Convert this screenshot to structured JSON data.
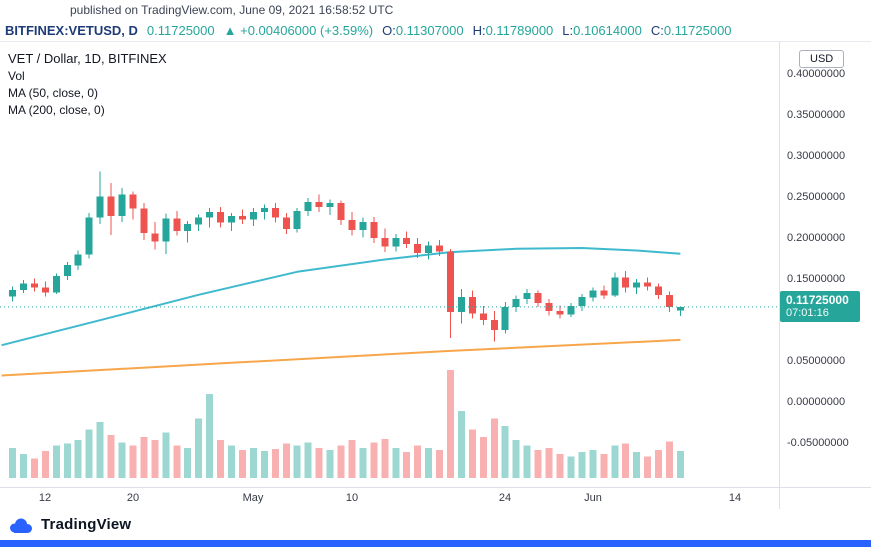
{
  "meta": {
    "published": "published on TradingView.com, June 09, 2021 16:58:52 UTC"
  },
  "symbol_bar": {
    "symbol": "BITFINEX:VETUSD, D",
    "last": "0.11725000",
    "change": "▲ +0.00406000 (+3.59%)",
    "ohlc": [
      {
        "label": "O:",
        "value": "0.11307000"
      },
      {
        "label": "H:",
        "value": "0.11789000"
      },
      {
        "label": "L:",
        "value": "0.10614000"
      },
      {
        "label": "C:",
        "value": "0.11725000"
      }
    ]
  },
  "legend": {
    "title": "VET / Dollar, 1D, BITFINEX",
    "vol": "Vol",
    "ma50": "MA (50, close, 0)",
    "ma200": "MA (200, close, 0)"
  },
  "price_scale": {
    "usd_label": "USD",
    "labels": [
      "0.40000000",
      "0.35000000",
      "0.30000000",
      "0.25000000",
      "0.20000000",
      "0.15000000",
      "0.05000000",
      "0.00000000",
      "-0.05000000"
    ],
    "badge": {
      "price": "0.11725000",
      "countdown": "07:01:16"
    }
  },
  "footer": {
    "brand": "TradingView"
  },
  "chart_data": {
    "type": "candlestick",
    "title": "VET / Dollar, 1D, BITFINEX",
    "symbol": "BITFINEX:VETUSD",
    "interval": "1D",
    "quote": "USD",
    "first_candle_date": "2021-04-09",
    "last_candle_date": "2021-06-09",
    "last_price": 0.11725,
    "ylim": [
      -0.1024,
      0.4402
    ],
    "y_ticks": [
      0.4,
      0.35,
      0.3,
      0.25,
      0.2,
      0.15,
      0.1,
      0.05,
      0.0,
      -0.05
    ],
    "x_ticks": [
      {
        "label": "12",
        "i": 3
      },
      {
        "label": "20",
        "i": 11
      },
      {
        "label": "May",
        "i": 22
      },
      {
        "label": "10",
        "i": 31
      },
      {
        "label": "24",
        "i": 45
      },
      {
        "label": "Jun",
        "i": 53
      },
      {
        "label": "14",
        "i": 66
      }
    ],
    "candles_format": [
      "open",
      "high",
      "low",
      "close",
      "relative_volume"
    ],
    "candles": [
      [
        0.13,
        0.142,
        0.124,
        0.138,
        0.28
      ],
      [
        0.138,
        0.15,
        0.134,
        0.146,
        0.22
      ],
      [
        0.146,
        0.152,
        0.136,
        0.141,
        0.18
      ],
      [
        0.141,
        0.148,
        0.13,
        0.135,
        0.25
      ],
      [
        0.135,
        0.158,
        0.133,
        0.155,
        0.3
      ],
      [
        0.155,
        0.172,
        0.15,
        0.168,
        0.32
      ],
      [
        0.168,
        0.186,
        0.162,
        0.181,
        0.35
      ],
      [
        0.181,
        0.232,
        0.176,
        0.226,
        0.45
      ],
      [
        0.226,
        0.282,
        0.218,
        0.252,
        0.52
      ],
      [
        0.252,
        0.268,
        0.205,
        0.228,
        0.4
      ],
      [
        0.228,
        0.262,
        0.221,
        0.254,
        0.33
      ],
      [
        0.254,
        0.258,
        0.224,
        0.237,
        0.3
      ],
      [
        0.237,
        0.244,
        0.199,
        0.207,
        0.38
      ],
      [
        0.207,
        0.221,
        0.187,
        0.197,
        0.35
      ],
      [
        0.197,
        0.231,
        0.182,
        0.225,
        0.42
      ],
      [
        0.225,
        0.234,
        0.204,
        0.21,
        0.3
      ],
      [
        0.21,
        0.222,
        0.196,
        0.218,
        0.28
      ],
      [
        0.218,
        0.23,
        0.21,
        0.226,
        0.55
      ],
      [
        0.226,
        0.238,
        0.214,
        0.233,
        0.78
      ],
      [
        0.233,
        0.239,
        0.214,
        0.22,
        0.35
      ],
      [
        0.22,
        0.232,
        0.21,
        0.228,
        0.3
      ],
      [
        0.228,
        0.236,
        0.218,
        0.224,
        0.26
      ],
      [
        0.224,
        0.238,
        0.216,
        0.233,
        0.28
      ],
      [
        0.233,
        0.242,
        0.224,
        0.238,
        0.25
      ],
      [
        0.238,
        0.244,
        0.22,
        0.226,
        0.27
      ],
      [
        0.226,
        0.232,
        0.206,
        0.212,
        0.32
      ],
      [
        0.212,
        0.238,
        0.208,
        0.234,
        0.3
      ],
      [
        0.234,
        0.25,
        0.228,
        0.245,
        0.33
      ],
      [
        0.245,
        0.254,
        0.233,
        0.239,
        0.28
      ],
      [
        0.239,
        0.248,
        0.229,
        0.244,
        0.26
      ],
      [
        0.244,
        0.247,
        0.217,
        0.223,
        0.3
      ],
      [
        0.223,
        0.233,
        0.204,
        0.211,
        0.35
      ],
      [
        0.211,
        0.226,
        0.202,
        0.221,
        0.28
      ],
      [
        0.221,
        0.227,
        0.195,
        0.201,
        0.33
      ],
      [
        0.201,
        0.213,
        0.184,
        0.191,
        0.36
      ],
      [
        0.191,
        0.206,
        0.185,
        0.201,
        0.28
      ],
      [
        0.201,
        0.209,
        0.189,
        0.194,
        0.24
      ],
      [
        0.194,
        0.201,
        0.177,
        0.183,
        0.3
      ],
      [
        0.183,
        0.197,
        0.175,
        0.192,
        0.28
      ],
      [
        0.192,
        0.199,
        0.179,
        0.185,
        0.26
      ],
      [
        0.185,
        0.188,
        0.079,
        0.111,
        1.0
      ],
      [
        0.111,
        0.139,
        0.097,
        0.129,
        0.62
      ],
      [
        0.129,
        0.137,
        0.103,
        0.109,
        0.45
      ],
      [
        0.109,
        0.118,
        0.095,
        0.101,
        0.38
      ],
      [
        0.101,
        0.112,
        0.075,
        0.089,
        0.55
      ],
      [
        0.089,
        0.123,
        0.085,
        0.117,
        0.48
      ],
      [
        0.117,
        0.131,
        0.111,
        0.127,
        0.35
      ],
      [
        0.127,
        0.139,
        0.121,
        0.134,
        0.3
      ],
      [
        0.134,
        0.137,
        0.117,
        0.122,
        0.26
      ],
      [
        0.122,
        0.127,
        0.107,
        0.112,
        0.28
      ],
      [
        0.112,
        0.119,
        0.103,
        0.108,
        0.22
      ],
      [
        0.108,
        0.122,
        0.105,
        0.118,
        0.2
      ],
      [
        0.118,
        0.133,
        0.112,
        0.129,
        0.24
      ],
      [
        0.129,
        0.141,
        0.124,
        0.137,
        0.26
      ],
      [
        0.137,
        0.143,
        0.127,
        0.131,
        0.22
      ],
      [
        0.131,
        0.159,
        0.129,
        0.153,
        0.3
      ],
      [
        0.153,
        0.161,
        0.135,
        0.141,
        0.32
      ],
      [
        0.141,
        0.151,
        0.133,
        0.147,
        0.24
      ],
      [
        0.147,
        0.153,
        0.137,
        0.142,
        0.2
      ],
      [
        0.142,
        0.146,
        0.127,
        0.132,
        0.26
      ],
      [
        0.132,
        0.136,
        0.111,
        0.117,
        0.34
      ],
      [
        0.11307,
        0.11789,
        0.10614,
        0.11725,
        0.25
      ]
    ],
    "ma50": {
      "label": "MA (50, close, 0)",
      "color": "#3fb9ce",
      "points": [
        {
          "i": -1,
          "p": 0.0705
        },
        {
          "i": 8,
          "p": 0.101
        },
        {
          "i": 17,
          "p": 0.132
        },
        {
          "i": 26,
          "p": 0.16
        },
        {
          "i": 34,
          "p": 0.175
        },
        {
          "i": 40,
          "p": 0.184
        },
        {
          "i": 46,
          "p": 0.188
        },
        {
          "i": 52,
          "p": 0.189
        },
        {
          "i": 57,
          "p": 0.186
        },
        {
          "i": 61,
          "p": 0.182
        }
      ]
    },
    "ma200": {
      "label": "MA (200, close, 0)",
      "color": "#f7a64a",
      "points": [
        {
          "i": -1,
          "p": 0.0335
        },
        {
          "i": 20,
          "p": 0.049
        },
        {
          "i": 40,
          "p": 0.0635
        },
        {
          "i": 61,
          "p": 0.077
        }
      ]
    },
    "colors": {
      "up": "#26a69a",
      "down": "#ef5350",
      "vol_up": "rgba(38,166,154,0.45)",
      "vol_down": "rgba(239,83,80,0.45)",
      "last_price_line": "#26a69a",
      "badge": "#26a69a"
    }
  }
}
